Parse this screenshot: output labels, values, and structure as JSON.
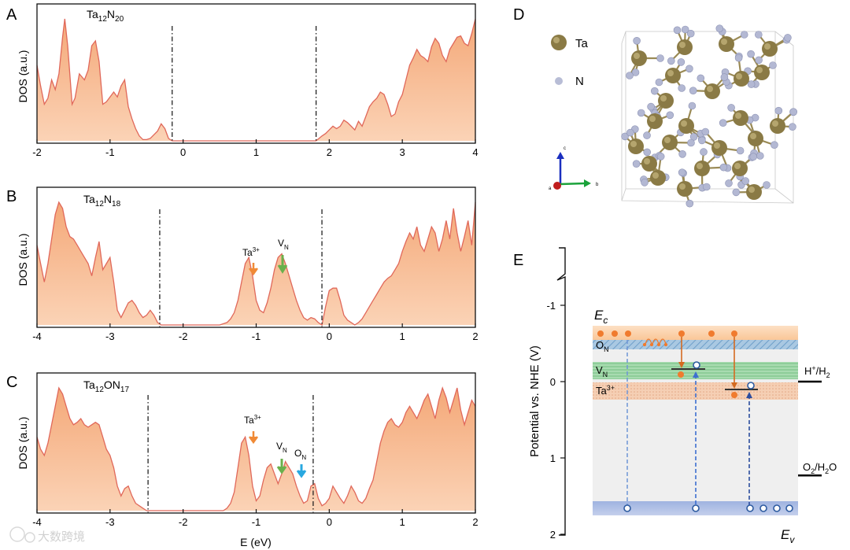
{
  "colors": {
    "dos_fill": "#f7bf98",
    "dos_line": "#e0685a",
    "ta_arrow": "#f08a36",
    "vn_arrow": "#6ab04c",
    "on_arrow": "#29a8e0",
    "ta_atom": "#8a7a45",
    "n_atom": "#b8bdd6",
    "band_cb": "#fbd0a8",
    "band_vb": "#b6c3e6",
    "band_on": "#8fb8d8",
    "band_vn": "#9fd4a8",
    "band_ta": "#f3c4a4"
  },
  "panel_a": {
    "letter": "A",
    "compound": "Ta",
    "compound_sub": "12",
    "compound_rest": "N",
    "compound_rest_sub": "20",
    "ylabel": "DOS (a.u.)",
    "xticks": [
      "-2",
      "-1",
      "0",
      "1",
      "2",
      "3",
      "4"
    ],
    "xlim": [
      -2,
      4
    ],
    "dash_lines": [
      -0.15,
      1.82
    ]
  },
  "panel_b": {
    "letter": "B",
    "compound": "Ta",
    "compound_sub": "12",
    "compound_rest": "N",
    "compound_rest_sub": "18",
    "ylabel": "DOS (a.u.)",
    "xticks": [
      "-4",
      "-3",
      "-2",
      "-1",
      "0",
      "1",
      "2"
    ],
    "xlim": [
      -4,
      2
    ],
    "dash_lines": [
      -2.32,
      -0.1
    ],
    "ann_ta": "Ta",
    "ann_ta_sup": "3+",
    "ann_vn": "V",
    "ann_vn_sub": "N"
  },
  "panel_c": {
    "letter": "C",
    "compound": "Ta",
    "compound_sub": "12",
    "compound_rest": "ON",
    "compound_rest_sub": "17",
    "ylabel": "DOS (a.u.)",
    "xticks": [
      "-4",
      "-3",
      "-2",
      "-1",
      "0",
      "1",
      "2"
    ],
    "xlim": [
      -4,
      2
    ],
    "dash_lines": [
      -2.48,
      -0.22
    ],
    "xlabel": "E (eV)",
    "ann_ta": "Ta",
    "ann_ta_sup": "3+",
    "ann_vn": "V",
    "ann_vn_sub": "N",
    "ann_on": "O",
    "ann_on_sub": "N"
  },
  "panel_d": {
    "letter": "D",
    "legend_ta": "Ta",
    "legend_n": "N",
    "axis_c": "c",
    "axis_b": "b",
    "axis_a": "a"
  },
  "panel_e": {
    "letter": "E",
    "ylabel": "Potential vs. NHE (V)",
    "yticks": [
      "-1",
      "0",
      "1",
      "2"
    ],
    "ec": "E",
    "ec_sub": "c",
    "ev": "E",
    "ev_sub": "v",
    "on": "O",
    "on_sub": "N",
    "vn": "V",
    "vn_sub": "N",
    "ta": "Ta",
    "ta_sup": "3+",
    "h_label": "H",
    "h_sup": "+",
    "h_rest": "/H",
    "h_rest_sub": "2",
    "o_label": "O",
    "o_sub": "2",
    "o_rest": "/H",
    "o_rest2": "2",
    "o_rest3": "O",
    "h_potential": 0.0,
    "o_potential": 1.23
  },
  "watermark": "大数跨境",
  "chart_data": [
    {
      "type": "area",
      "title": "Ta12N20",
      "xlabel": "",
      "ylabel": "DOS (a.u.)",
      "xlim": [
        -2,
        4
      ],
      "x": [
        -2,
        -1.95,
        -1.9,
        -1.85,
        -1.8,
        -1.75,
        -1.7,
        -1.65,
        -1.62,
        -1.58,
        -1.52,
        -1.48,
        -1.42,
        -1.35,
        -1.3,
        -1.25,
        -1.2,
        -1.15,
        -1.1,
        -1.05,
        -1.0,
        -0.95,
        -0.9,
        -0.85,
        -0.8,
        -0.75,
        -0.7,
        -0.65,
        -0.6,
        -0.55,
        -0.5,
        -0.45,
        -0.4,
        -0.35,
        -0.3,
        -0.25,
        -0.2,
        -0.15,
        1.82,
        1.9,
        1.95,
        2.0,
        2.05,
        2.1,
        2.15,
        2.2,
        2.25,
        2.3,
        2.35,
        2.4,
        2.45,
        2.5,
        2.55,
        2.6,
        2.65,
        2.7,
        2.75,
        2.8,
        2.85,
        2.9,
        2.95,
        3.0,
        3.05,
        3.1,
        3.15,
        3.2,
        3.25,
        3.3,
        3.35,
        3.4,
        3.45,
        3.5,
        3.55,
        3.6,
        3.65,
        3.7,
        3.75,
        3.8,
        3.85,
        3.9,
        3.95,
        4.0
      ],
      "y": [
        0.62,
        0.45,
        0.3,
        0.35,
        0.5,
        0.42,
        0.55,
        0.85,
        1.0,
        0.78,
        0.3,
        0.35,
        0.55,
        0.5,
        0.58,
        0.78,
        0.82,
        0.65,
        0.3,
        0.32,
        0.36,
        0.4,
        0.36,
        0.45,
        0.5,
        0.28,
        0.18,
        0.1,
        0.04,
        0.01,
        0.01,
        0.02,
        0.05,
        0.08,
        0.14,
        0.1,
        0.02,
        0.0,
        0.0,
        0.04,
        0.06,
        0.09,
        0.12,
        0.1,
        0.12,
        0.17,
        0.15,
        0.12,
        0.09,
        0.16,
        0.12,
        0.2,
        0.28,
        0.32,
        0.35,
        0.4,
        0.38,
        0.3,
        0.2,
        0.22,
        0.32,
        0.38,
        0.5,
        0.62,
        0.68,
        0.75,
        0.7,
        0.68,
        0.65,
        0.77,
        0.84,
        0.8,
        0.7,
        0.65,
        0.75,
        0.8,
        0.85,
        0.86,
        0.8,
        0.78,
        0.88,
        1.0
      ]
    },
    {
      "type": "area",
      "title": "Ta12N18",
      "xlabel": "",
      "ylabel": "DOS (a.u.)",
      "xlim": [
        -4,
        2
      ],
      "x": [
        -4,
        -3.95,
        -3.9,
        -3.85,
        -3.8,
        -3.75,
        -3.7,
        -3.65,
        -3.6,
        -3.55,
        -3.5,
        -3.45,
        -3.4,
        -3.35,
        -3.3,
        -3.25,
        -3.2,
        -3.15,
        -3.1,
        -3.05,
        -3.0,
        -2.95,
        -2.9,
        -2.85,
        -2.8,
        -2.75,
        -2.7,
        -2.65,
        -2.6,
        -2.55,
        -2.5,
        -2.45,
        -2.4,
        -2.35,
        -2.3,
        -1.5,
        -1.4,
        -1.35,
        -1.3,
        -1.25,
        -1.2,
        -1.15,
        -1.1,
        -1.05,
        -1.0,
        -0.95,
        -0.9,
        -0.85,
        -0.8,
        -0.75,
        -0.7,
        -0.65,
        -0.6,
        -0.55,
        -0.5,
        -0.45,
        -0.4,
        -0.35,
        -0.3,
        -0.25,
        -0.2,
        -0.15,
        -0.1,
        -0.05,
        0.0,
        0.05,
        0.1,
        0.15,
        0.2,
        0.25,
        0.3,
        0.35,
        0.4,
        0.45,
        0.5,
        0.55,
        0.6,
        0.65,
        0.7,
        0.75,
        0.8,
        0.85,
        0.9,
        0.95,
        1.0,
        1.05,
        1.1,
        1.15,
        1.2,
        1.25,
        1.3,
        1.35,
        1.4,
        1.45,
        1.5,
        1.55,
        1.6,
        1.65,
        1.7,
        1.75,
        1.8,
        1.85,
        1.9,
        1.95,
        2.0
      ],
      "y": [
        0.65,
        0.5,
        0.35,
        0.5,
        0.7,
        0.9,
        1.0,
        0.95,
        0.8,
        0.72,
        0.7,
        0.65,
        0.6,
        0.55,
        0.5,
        0.4,
        0.55,
        0.68,
        0.45,
        0.5,
        0.55,
        0.35,
        0.12,
        0.06,
        0.12,
        0.18,
        0.2,
        0.16,
        0.1,
        0.06,
        0.08,
        0.12,
        0.08,
        0.02,
        0.0,
        0.0,
        0.02,
        0.05,
        0.1,
        0.2,
        0.35,
        0.5,
        0.55,
        0.4,
        0.2,
        0.12,
        0.1,
        0.18,
        0.3,
        0.45,
        0.55,
        0.58,
        0.5,
        0.4,
        0.3,
        0.2,
        0.12,
        0.06,
        0.04,
        0.06,
        0.05,
        0.02,
        0.0,
        0.15,
        0.28,
        0.3,
        0.3,
        0.2,
        0.08,
        0.04,
        0.02,
        0.0,
        0.02,
        0.05,
        0.1,
        0.15,
        0.2,
        0.25,
        0.3,
        0.35,
        0.38,
        0.4,
        0.45,
        0.5,
        0.6,
        0.68,
        0.75,
        0.7,
        0.8,
        0.65,
        0.6,
        0.7,
        0.8,
        0.75,
        0.6,
        0.7,
        0.85,
        0.7,
        0.95,
        0.75,
        0.6,
        0.72,
        0.85,
        0.65,
        1.0
      ]
    },
    {
      "type": "area",
      "title": "Ta12ON17",
      "xlabel": "E (eV)",
      "ylabel": "DOS (a.u.)",
      "xlim": [
        -4,
        2
      ],
      "x": [
        -4,
        -3.95,
        -3.9,
        -3.85,
        -3.8,
        -3.75,
        -3.7,
        -3.65,
        -3.6,
        -3.55,
        -3.5,
        -3.45,
        -3.4,
        -3.35,
        -3.3,
        -3.25,
        -3.2,
        -3.15,
        -3.1,
        -3.05,
        -3.0,
        -2.95,
        -2.9,
        -2.85,
        -2.8,
        -2.75,
        -2.7,
        -2.65,
        -2.6,
        -2.55,
        -2.5,
        -1.45,
        -1.4,
        -1.35,
        -1.3,
        -1.25,
        -1.2,
        -1.15,
        -1.1,
        -1.05,
        -1.0,
        -0.95,
        -0.9,
        -0.85,
        -0.8,
        -0.75,
        -0.7,
        -0.65,
        -0.6,
        -0.55,
        -0.5,
        -0.45,
        -0.4,
        -0.35,
        -0.3,
        -0.25,
        -0.2,
        -0.15,
        -0.1,
        -0.05,
        0.0,
        0.05,
        0.1,
        0.15,
        0.2,
        0.25,
        0.3,
        0.35,
        0.4,
        0.45,
        0.5,
        0.55,
        0.6,
        0.65,
        0.7,
        0.75,
        0.8,
        0.85,
        0.9,
        0.95,
        1.0,
        1.05,
        1.1,
        1.15,
        1.2,
        1.25,
        1.3,
        1.35,
        1.4,
        1.45,
        1.5,
        1.55,
        1.6,
        1.65,
        1.7,
        1.75,
        1.8,
        1.85,
        1.9,
        1.95,
        2.0
      ],
      "y": [
        0.6,
        0.5,
        0.45,
        0.55,
        0.7,
        0.85,
        1.0,
        0.95,
        0.85,
        0.75,
        0.7,
        0.72,
        0.75,
        0.7,
        0.68,
        0.7,
        0.72,
        0.7,
        0.6,
        0.5,
        0.45,
        0.35,
        0.2,
        0.12,
        0.18,
        0.2,
        0.12,
        0.06,
        0.04,
        0.02,
        0.0,
        0.0,
        0.02,
        0.06,
        0.15,
        0.35,
        0.55,
        0.6,
        0.45,
        0.2,
        0.08,
        0.12,
        0.25,
        0.35,
        0.38,
        0.3,
        0.22,
        0.3,
        0.4,
        0.35,
        0.3,
        0.2,
        0.12,
        0.06,
        0.08,
        0.2,
        0.22,
        0.1,
        0.04,
        0.06,
        0.1,
        0.2,
        0.15,
        0.1,
        0.06,
        0.12,
        0.2,
        0.15,
        0.08,
        0.06,
        0.1,
        0.18,
        0.25,
        0.4,
        0.55,
        0.65,
        0.72,
        0.75,
        0.7,
        0.68,
        0.72,
        0.8,
        0.85,
        0.8,
        0.75,
        0.82,
        0.9,
        0.95,
        0.85,
        0.75,
        0.9,
        1.0,
        0.92,
        0.8,
        0.9,
        1.0,
        0.82,
        0.7,
        0.8,
        0.9,
        0.85
      ]
    }
  ]
}
